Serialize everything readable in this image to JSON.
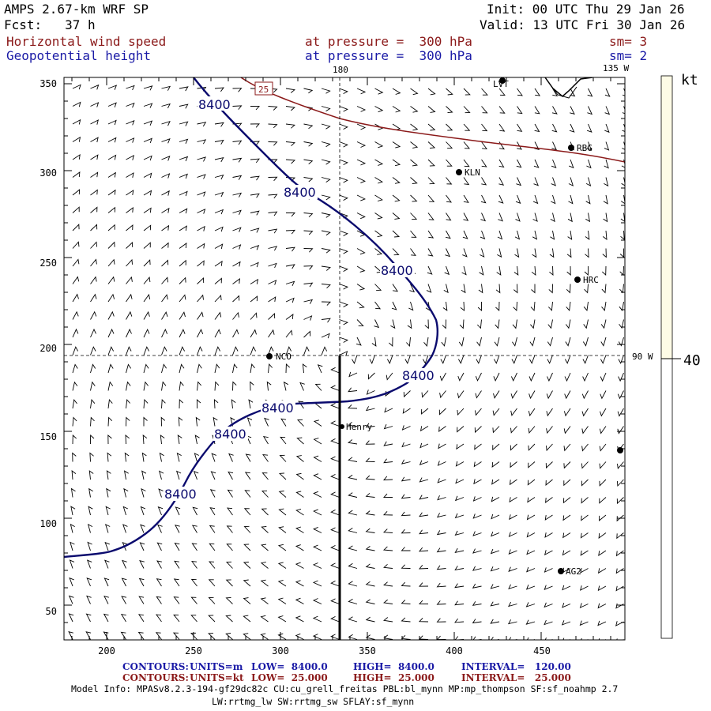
{
  "header": {
    "model": "AMPS 2.67-km WRF SP",
    "fcst": "Fcst:   37 h",
    "init": "Init: 00 UTC Thu 29 Jan 26",
    "valid": "Valid: 13 UTC Fri 30 Jan 26",
    "field1_name": "Horizontal wind speed",
    "field1_level": "at pressure =  300 hPa",
    "field1_sm": "sm= 3",
    "field2_name": "Geopotential height",
    "field2_level": "at pressure =  300 hPa",
    "field2_sm": "sm= 2"
  },
  "map": {
    "lon_top_180": "180",
    "lon_top_135w": "135 W",
    "lon_right_90w": "90 W",
    "x_ticks": [
      "200",
      "250",
      "300",
      "350",
      "400",
      "450"
    ],
    "y_ticks": [
      "350",
      "300",
      "250",
      "200",
      "150",
      "100",
      "50"
    ],
    "stations": [
      {
        "name": "LVT"
      },
      {
        "name": "RBG"
      },
      {
        "name": "KLN"
      },
      {
        "name": "HRC"
      },
      {
        "name": "NCO"
      },
      {
        "name": "Henry"
      },
      {
        "name": "AG2"
      },
      {
        "name": ""
      }
    ],
    "contour_labels": [
      "8400",
      "8400",
      "8400",
      "8400",
      "8400",
      "8400",
      "8400"
    ],
    "wind_contour_label": "25",
    "colors": {
      "height_contour": "#0a0a6e",
      "wind_contour": "#8b1a1a",
      "coast": "#000000",
      "colorbar_fill": "#fdfbe6"
    }
  },
  "colorbar": {
    "unit": "kt",
    "value": "40"
  },
  "footer": {
    "line1_label": "CONTOURS:",
    "line1_units": "UNITS=m",
    "line1_low": "LOW=  8400.0",
    "line1_high": "HIGH=  8400.0",
    "line1_interval": "INTERVAL=   120.00",
    "line2_label": "CONTOURS:",
    "line2_units": "UNITS=kt",
    "line2_low": "LOW=  25.000",
    "line2_high": "HIGH=  25.000",
    "line2_interval": "INTERVAL=   25.000",
    "model_info": "Model Info: MPASv8.2.3-194-gf29dc82c CU:cu_grell_freitas PBL:bl_mynn MP:mp_thompson SF:sf_noahmp 2.7",
    "model_info2": "LW:rrtmg_lw SW:rrtmg_sw SFLAY:sf_mynn"
  }
}
